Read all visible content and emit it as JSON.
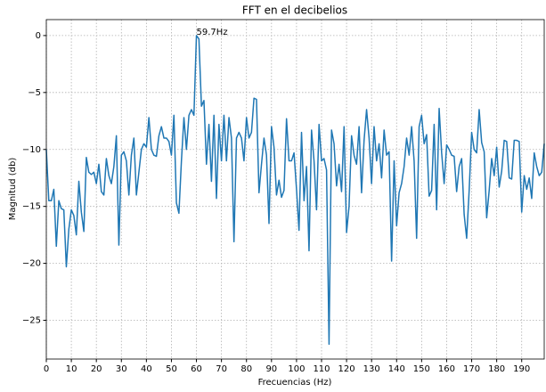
{
  "chart_data": {
    "type": "line",
    "title": "FFT en el decibelios",
    "xlabel": "Frecuencias (Hz)",
    "ylabel": "Magnitud (db)",
    "annotation": "59.7Hz",
    "x": [
      0,
      1,
      2,
      3,
      4,
      5,
      6,
      7,
      8,
      9,
      10,
      11,
      12,
      13,
      14,
      15,
      16,
      17,
      18,
      19,
      20,
      21,
      22,
      23,
      24,
      25,
      26,
      27,
      28,
      29,
      30,
      31,
      32,
      33,
      34,
      35,
      36,
      37,
      38,
      39,
      40,
      41,
      42,
      43,
      44,
      45,
      46,
      47,
      48,
      49,
      50,
      51,
      52,
      53,
      54,
      55,
      56,
      57,
      58,
      59,
      60,
      61,
      62,
      63,
      64,
      65,
      66,
      67,
      68,
      69,
      70,
      71,
      72,
      73,
      74,
      75,
      76,
      77,
      78,
      79,
      80,
      81,
      82,
      83,
      84,
      85,
      86,
      87,
      88,
      89,
      90,
      91,
      92,
      93,
      94,
      95,
      96,
      97,
      98,
      99,
      100,
      101,
      102,
      103,
      104,
      105,
      106,
      107,
      108,
      109,
      110,
      111,
      112,
      113,
      114,
      115,
      116,
      117,
      118,
      119,
      120,
      121,
      122,
      123,
      124,
      125,
      126,
      127,
      128,
      129,
      130,
      131,
      132,
      133,
      134,
      135,
      136,
      137,
      138,
      139,
      140,
      141,
      142,
      143,
      144,
      145,
      146,
      147,
      148,
      149,
      150,
      151,
      152,
      153,
      154,
      155,
      156,
      157,
      158,
      159,
      160,
      161,
      162,
      163,
      164,
      165,
      166,
      167,
      168,
      169,
      170,
      171,
      172,
      173,
      174,
      175,
      176,
      177,
      178,
      179,
      180,
      181,
      182,
      183,
      184,
      185,
      186,
      187,
      188,
      189,
      190,
      191,
      192,
      193,
      194,
      195,
      196,
      197,
      198,
      199
    ],
    "series": [
      {
        "name": "FFT",
        "color": "#1f77b4",
        "values": [
          -10,
          -14.5,
          -14.5,
          -13.5,
          -18.5,
          -14.5,
          -15.2,
          -15.3,
          -20.3,
          -17,
          -15.3,
          -15.8,
          -17.5,
          -12.8,
          -15.5,
          -17.2,
          -10.7,
          -12,
          -12.2,
          -12,
          -13,
          -11.3,
          -13.7,
          -14,
          -10.8,
          -12.3,
          -13,
          -11.5,
          -8.8,
          -18.4,
          -10.5,
          -10.2,
          -11,
          -14,
          -10.5,
          -9,
          -14,
          -12,
          -10,
          -9.5,
          -9.8,
          -7.2,
          -10,
          -10.5,
          -10.6,
          -8.8,
          -8,
          -9,
          -9,
          -9.3,
          -10.5,
          -7,
          -14.7,
          -15.6,
          -11,
          -7.2,
          -10,
          -7,
          -6.5,
          -7,
          0,
          -0.3,
          -6.2,
          -5.7,
          -11.3,
          -7.8,
          -12.8,
          -7,
          -14.3,
          -7.8,
          -11,
          -7,
          -11,
          -7.2,
          -9,
          -18.1,
          -9,
          -8.5,
          -9,
          -11,
          -7.2,
          -9,
          -8.5,
          -5.5,
          -5.6,
          -13.8,
          -11.3,
          -9,
          -10.5,
          -16.5,
          -8,
          -9.8,
          -14,
          -12.7,
          -14.2,
          -13.6,
          -7.3,
          -11,
          -11,
          -10.3,
          -13.5,
          -17.1,
          -8.5,
          -14.5,
          -11.5,
          -18.9,
          -8.3,
          -11,
          -15.3,
          -7.8,
          -11,
          -10.8,
          -11.8,
          -27.1,
          -8.3,
          -9.5,
          -13.2,
          -11.3,
          -13.7,
          -8,
          -17.3,
          -15,
          -8.8,
          -10.5,
          -11.3,
          -8,
          -13.8,
          -9.2,
          -6.5,
          -9,
          -13,
          -8,
          -11,
          -9.5,
          -12.5,
          -8.3,
          -10.5,
          -10.2,
          -19.8,
          -11,
          -16.7,
          -13.8,
          -13,
          -11.5,
          -9,
          -10.5,
          -8,
          -11,
          -17.8,
          -8,
          -7,
          -9.5,
          -8.7,
          -14.1,
          -13.6,
          -7.8,
          -15.3,
          -6.4,
          -10.3,
          -13,
          -9.6,
          -10,
          -10.5,
          -10.6,
          -13.7,
          -11.5,
          -10.8,
          -15.7,
          -17.8,
          -13.6,
          -8.5,
          -10,
          -10.3,
          -6.5,
          -9.4,
          -10.2,
          -16,
          -13.6,
          -10.8,
          -12.3,
          -9.8,
          -13.3,
          -11.9,
          -9.2,
          -9.3,
          -12.5,
          -12.6,
          -9.2,
          -9.2,
          -9.3,
          -15.5,
          -12.3,
          -13.5,
          -12.5,
          -14.3,
          -10.3,
          -11.5,
          -12.3,
          -12,
          -9.5
        ]
      }
    ],
    "xlim": [
      0,
      199
    ],
    "ylim": [
      -28.4,
      1.4
    ],
    "xticks": [
      0,
      10,
      20,
      30,
      40,
      50,
      60,
      70,
      80,
      90,
      100,
      110,
      120,
      130,
      140,
      150,
      160,
      170,
      180,
      190
    ],
    "yticks": [
      0,
      {
        "value": -5,
        "label": "−5"
      },
      {
        "value": -10,
        "label": "−10"
      },
      {
        "value": -15,
        "label": "−15"
      },
      {
        "value": -20,
        "label": "−20"
      },
      {
        "value": -25,
        "label": "−25"
      }
    ],
    "grid": true
  }
}
